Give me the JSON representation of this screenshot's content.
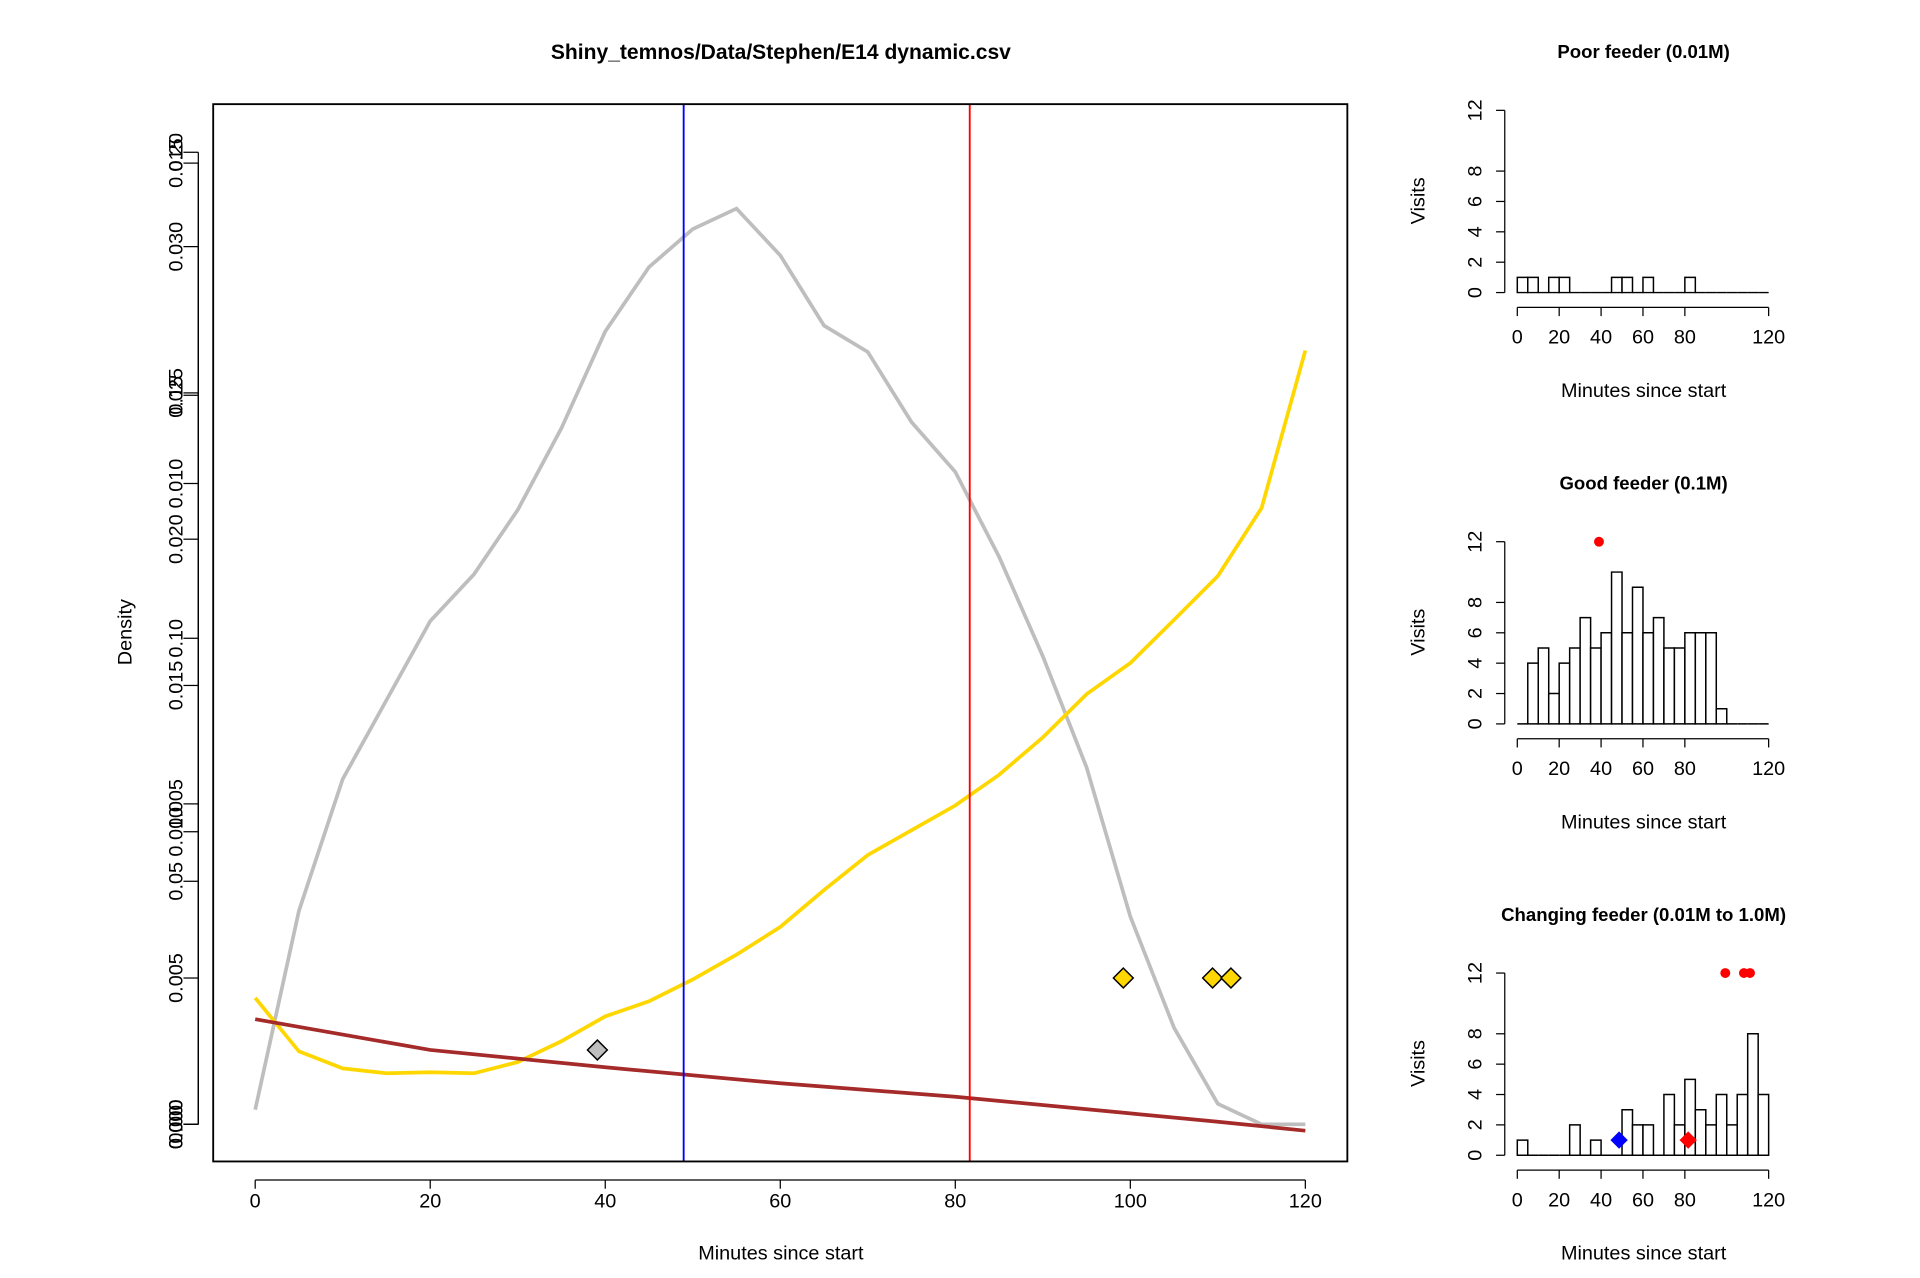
{
  "chart_data": [
    {
      "type": "line",
      "title": "Shiny_temnos/Data/Stephen/E14 dynamic.csv",
      "x_label": "Minutes since start",
      "y_label": "Density",
      "xlim": [
        -4.8,
        124.8
      ],
      "xticks": [
        0,
        20,
        40,
        60,
        80,
        100,
        120
      ],
      "y_axes": [
        {
          "ylim": [
            -0.00058,
            0.01592
          ],
          "yticks": [
            {
              "value": 0,
              "label": "0.000"
            },
            0.005,
            {
              "value": 0.01,
              "label": "0.010"
            },
            0.015
          ]
        },
        {
          "ylim": [
            -0.00127,
            0.03487
          ],
          "yticks": [
            {
              "value": 0,
              "label": "0.000"
            },
            0.005,
            {
              "value": 0.01,
              "label": "0.010"
            },
            0.015,
            {
              "value": 0.02,
              "label": "0.020"
            },
            0.025,
            {
              "value": 0.03,
              "label": "0.030"
            }
          ]
        },
        {
          "ylim": [
            -0.00765,
            0.2099
          ],
          "yticks": [
            {
              "value": 0,
              "label": "0.00"
            },
            0.05,
            {
              "value": 0.1,
              "label": "0.10"
            },
            0.15,
            {
              "value": 0.2,
              "label": "0.20"
            }
          ]
        }
      ],
      "series": [
        {
          "color": "#bebebe",
          "axis": 1,
          "x": [
            0,
            5,
            10,
            15,
            20,
            25,
            30,
            35,
            40,
            45,
            50,
            55,
            60,
            65,
            70,
            75,
            80,
            85,
            90,
            95,
            100,
            105,
            110,
            115,
            120
          ],
          "values": [
            0.0005,
            0.0073,
            0.0118,
            0.0145,
            0.0172,
            0.0188,
            0.021,
            0.0238,
            0.0271,
            0.0293,
            0.0306,
            0.0313,
            0.0297,
            0.0273,
            0.0264,
            0.024,
            0.0223,
            0.0194,
            0.016,
            0.0122,
            0.0071,
            0.0033,
            0.0007,
            0,
            0
          ]
        },
        {
          "color": "#ffd700",
          "axis": 2,
          "x": [
            0,
            5,
            10,
            15,
            20,
            25,
            30,
            35,
            40,
            45,
            50,
            55,
            60,
            65,
            70,
            75,
            80,
            85,
            90,
            95,
            100,
            105,
            110,
            115,
            120
          ],
          "values": [
            0.026,
            0.015,
            0.0115,
            0.0105,
            0.0107,
            0.0105,
            0.0128,
            0.0171,
            0.0222,
            0.0253,
            0.0298,
            0.0349,
            0.0406,
            0.0482,
            0.0554,
            0.0605,
            0.0656,
            0.0719,
            0.0796,
            0.0885,
            0.0949,
            0.1038,
            0.1128,
            0.1268,
            0.1592
          ]
        },
        {
          "color": "#a52a2a",
          "axis": 0,
          "x": [
            0,
            20,
            40,
            60,
            80,
            100,
            110,
            120
          ],
          "values": [
            0.00164,
            0.00116,
            0.00089,
            0.00064,
            0.00043,
            0.00017,
            4e-05,
            -0.0001
          ]
        }
      ],
      "vlines": [
        {
          "x": 48.96,
          "color": "#0000ff"
        },
        {
          "x": 81.65,
          "color": "#ff0000"
        }
      ],
      "point_groups": [
        {
          "color": "#ffd700",
          "axis": 1,
          "x": [
            99.2,
            109.4,
            111.5
          ],
          "y": [
            0.005,
            0.005,
            0.005
          ]
        },
        {
          "color": "#bebebe",
          "axis": 1,
          "x": [
            39.1
          ],
          "y": [
            0.00254
          ]
        }
      ]
    },
    {
      "type": "histogram",
      "title": "Poor feeder (0.01M)",
      "x_label": "Minutes since start",
      "y_label": "Visits",
      "xlim": [
        -4.8,
        124.8
      ],
      "xticks": [
        0,
        20,
        40,
        60,
        80,
        120
      ],
      "ylim": [
        0,
        12
      ],
      "yticks": [
        0,
        2,
        4,
        6,
        8,
        12
      ],
      "bins": [
        0,
        5,
        10,
        15,
        20,
        25,
        30,
        35,
        40,
        45,
        50,
        55,
        60,
        65,
        70,
        75,
        80,
        85,
        90,
        95,
        100,
        105,
        110,
        115,
        120
      ],
      "counts": [
        1,
        1,
        0,
        1,
        1,
        0,
        0,
        0,
        0,
        1,
        1,
        0,
        1,
        0,
        0,
        0,
        1,
        0,
        0,
        0,
        0,
        0,
        0,
        0
      ],
      "point_groups": []
    },
    {
      "type": "histogram",
      "title": "Good feeder (0.1M)",
      "x_label": "Minutes since start",
      "y_label": "Visits",
      "xlim": [
        -4.8,
        124.8
      ],
      "xticks": [
        0,
        20,
        40,
        60,
        80,
        120
      ],
      "ylim": [
        0,
        12
      ],
      "yticks": [
        0,
        2,
        4,
        6,
        8,
        12
      ],
      "bins": [
        0,
        5,
        10,
        15,
        20,
        25,
        30,
        35,
        40,
        45,
        50,
        55,
        60,
        65,
        70,
        75,
        80,
        85,
        90,
        95,
        100,
        105,
        110,
        115,
        120
      ],
      "counts": [
        0,
        4,
        5,
        2,
        4,
        5,
        7,
        5,
        6,
        10,
        6,
        9,
        6,
        7,
        5,
        5,
        6,
        6,
        6,
        1,
        0,
        0,
        0,
        0
      ],
      "point_groups": [
        {
          "color": "#ff0000",
          "shape": "circle",
          "x": [
            39
          ],
          "y": [
            12
          ]
        }
      ]
    },
    {
      "type": "histogram",
      "title": "Changing feeder (0.01M to 1.0M)",
      "x_label": "Minutes since start",
      "y_label": "Visits",
      "xlim": [
        -4.8,
        124.8
      ],
      "xticks": [
        0,
        20,
        40,
        60,
        80,
        120
      ],
      "ylim": [
        0,
        12
      ],
      "yticks": [
        0,
        2,
        4,
        6,
        8,
        12
      ],
      "bins": [
        0,
        5,
        10,
        15,
        20,
        25,
        30,
        35,
        40,
        45,
        50,
        55,
        60,
        65,
        70,
        75,
        80,
        85,
        90,
        95,
        100,
        105,
        110,
        115,
        120
      ],
      "counts": [
        1,
        0,
        0,
        0,
        0,
        2,
        0,
        1,
        0,
        0,
        3,
        2,
        2,
        0,
        4,
        2,
        5,
        3,
        2,
        4,
        2,
        4,
        8,
        4
      ],
      "point_groups": [
        {
          "color": "#ff0000",
          "shape": "circle",
          "x": [
            99.3,
            108.2,
            111.1
          ],
          "y": [
            12,
            12,
            12
          ]
        },
        {
          "color": "#0000ff",
          "shape": "diamond",
          "x": [
            48.6
          ],
          "y": [
            1
          ]
        },
        {
          "color": "#ff0000",
          "shape": "diamond",
          "x": [
            81.6
          ],
          "y": [
            1
          ]
        }
      ]
    }
  ]
}
